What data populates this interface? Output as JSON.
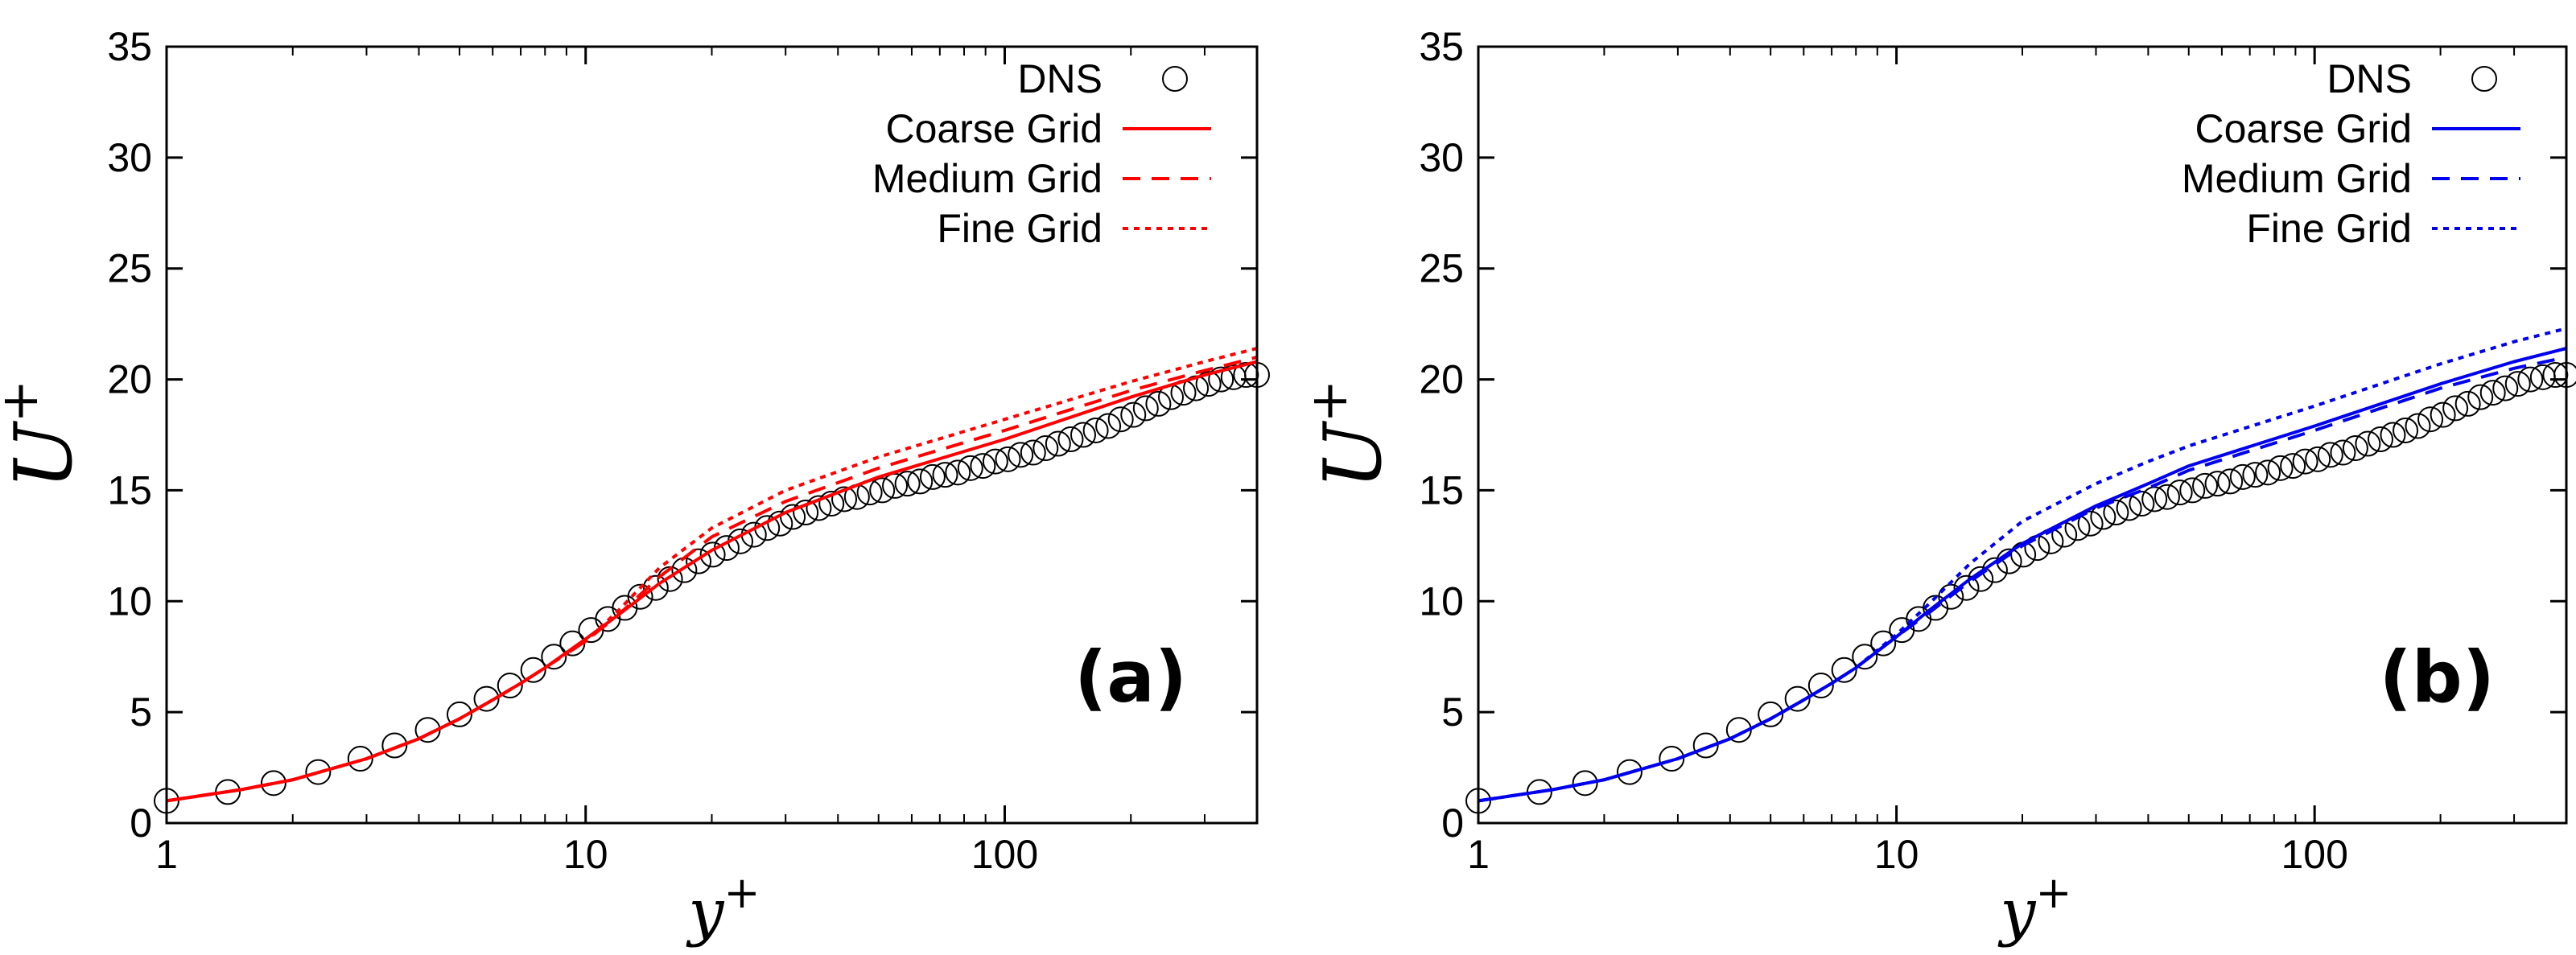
{
  "chart_data": [
    {
      "type": "line",
      "panel_label": "(a)",
      "xlabel": "y",
      "xlabel_sup": "+",
      "ylabel": "U",
      "ylabel_sup": "+",
      "x_scale": "log",
      "xlim": [
        1,
        400
      ],
      "ylim": [
        0,
        35
      ],
      "x_ticks": [
        1,
        10,
        100
      ],
      "x_tick_labels": [
        "1",
        "10",
        "100"
      ],
      "y_ticks": [
        0,
        5,
        10,
        15,
        20,
        25,
        30,
        35
      ],
      "y_tick_labels": [
        "0",
        "5",
        "10",
        "15",
        "20",
        "25",
        "30",
        "35"
      ],
      "grid": false,
      "legend_position": "top-right",
      "series": [
        {
          "name": "DNS",
          "style": "markers",
          "marker": "circle",
          "color": "#000000",
          "x": [
            1.0,
            1.4,
            1.8,
            2.3,
            2.9,
            3.5,
            4.2,
            5.0,
            5.8,
            6.6,
            7.5,
            8.4,
            9.3,
            10.3,
            11.3,
            12.4,
            13.5,
            14.7,
            15.9,
            17.2,
            18.6,
            20.1,
            21.7,
            23.4,
            25.2,
            27.1,
            29.1,
            31.2,
            33.5,
            36.0,
            38.6,
            41.4,
            44.4,
            47.6,
            51.0,
            54.7,
            58.6,
            62.8,
            67.3,
            72.1,
            77.3,
            82.8,
            88.7,
            95.0,
            101.8,
            109.1,
            116.9,
            125.2,
            134.1,
            143.7,
            153.9,
            164.9,
            176.6,
            189.2,
            202.7,
            217.1,
            232.6,
            249.2,
            266.9,
            285.9,
            306.3,
            328.1,
            351.5,
            376.5,
            400.0
          ],
          "y": [
            1.0,
            1.4,
            1.8,
            2.3,
            2.9,
            3.5,
            4.2,
            4.9,
            5.6,
            6.2,
            6.9,
            7.5,
            8.1,
            8.7,
            9.2,
            9.7,
            10.2,
            10.6,
            11.0,
            11.4,
            11.8,
            12.1,
            12.4,
            12.7,
            13.0,
            13.3,
            13.5,
            13.8,
            14.0,
            14.2,
            14.4,
            14.6,
            14.7,
            14.9,
            15.0,
            15.2,
            15.3,
            15.4,
            15.6,
            15.7,
            15.8,
            16.0,
            16.1,
            16.3,
            16.4,
            16.6,
            16.7,
            16.9,
            17.1,
            17.3,
            17.5,
            17.7,
            17.9,
            18.2,
            18.4,
            18.7,
            18.9,
            19.2,
            19.4,
            19.6,
            19.8,
            20.0,
            20.1,
            20.2,
            20.2
          ]
        },
        {
          "name": "Coarse Grid",
          "style": "solid",
          "color": "#ff0000",
          "x": [
            1,
            1.5,
            2,
            3,
            4,
            5,
            6,
            7,
            8,
            10,
            12,
            15,
            20,
            30,
            50,
            100,
            200,
            300,
            400
          ],
          "y": [
            1.0,
            1.5,
            1.95,
            2.9,
            3.8,
            4.7,
            5.55,
            6.3,
            7.0,
            8.3,
            9.4,
            10.8,
            12.3,
            14.0,
            15.6,
            17.3,
            19.2,
            20.2,
            20.8
          ]
        },
        {
          "name": "Medium Grid",
          "style": "dashed",
          "color": "#ff0000",
          "x": [
            1,
            1.5,
            2,
            3,
            4,
            5,
            6,
            7,
            8,
            10,
            12,
            15,
            20,
            30,
            50,
            100,
            200,
            300,
            400
          ],
          "y": [
            1.0,
            1.5,
            1.95,
            2.9,
            3.8,
            4.7,
            5.55,
            6.3,
            7.0,
            8.2,
            9.4,
            11.1,
            12.9,
            14.5,
            16.0,
            17.7,
            19.5,
            20.4,
            21.0
          ]
        },
        {
          "name": "Fine Grid",
          "style": "dotted",
          "color": "#ff0000",
          "x": [
            1,
            1.5,
            2,
            3,
            4,
            5,
            6,
            7,
            8,
            10,
            12,
            15,
            20,
            30,
            50,
            100,
            200,
            300,
            400
          ],
          "y": [
            1.0,
            1.5,
            1.95,
            2.9,
            3.8,
            4.7,
            5.55,
            6.3,
            7.0,
            8.2,
            9.6,
            11.5,
            13.3,
            15.0,
            16.5,
            18.2,
            19.9,
            20.8,
            21.4
          ]
        }
      ]
    },
    {
      "type": "line",
      "panel_label": "(b)",
      "xlabel": "y",
      "xlabel_sup": "+",
      "ylabel": "U",
      "ylabel_sup": "+",
      "x_scale": "log",
      "xlim": [
        1,
        400
      ],
      "ylim": [
        0,
        35
      ],
      "x_ticks": [
        1,
        10,
        100
      ],
      "x_tick_labels": [
        "1",
        "10",
        "100"
      ],
      "y_ticks": [
        0,
        5,
        10,
        15,
        20,
        25,
        30,
        35
      ],
      "y_tick_labels": [
        "0",
        "5",
        "10",
        "15",
        "20",
        "25",
        "30",
        "35"
      ],
      "grid": false,
      "legend_position": "top-right",
      "series": [
        {
          "name": "DNS",
          "style": "markers",
          "marker": "circle",
          "color": "#000000",
          "x": [
            1.0,
            1.4,
            1.8,
            2.3,
            2.9,
            3.5,
            4.2,
            5.0,
            5.8,
            6.6,
            7.5,
            8.4,
            9.3,
            10.3,
            11.3,
            12.4,
            13.5,
            14.7,
            15.9,
            17.2,
            18.6,
            20.1,
            21.7,
            23.4,
            25.2,
            27.1,
            29.1,
            31.2,
            33.5,
            36.0,
            38.6,
            41.4,
            44.4,
            47.6,
            51.0,
            54.7,
            58.6,
            62.8,
            67.3,
            72.1,
            77.3,
            82.8,
            88.7,
            95.0,
            101.8,
            109.1,
            116.9,
            125.2,
            134.1,
            143.7,
            153.9,
            164.9,
            176.6,
            189.2,
            202.7,
            217.1,
            232.6,
            249.2,
            266.9,
            285.9,
            306.3,
            328.1,
            351.5,
            376.5,
            400.0
          ],
          "y": [
            1.0,
            1.4,
            1.8,
            2.3,
            2.9,
            3.5,
            4.2,
            4.9,
            5.6,
            6.2,
            6.9,
            7.5,
            8.1,
            8.7,
            9.2,
            9.7,
            10.2,
            10.6,
            11.0,
            11.4,
            11.8,
            12.1,
            12.4,
            12.7,
            13.0,
            13.3,
            13.5,
            13.8,
            14.0,
            14.2,
            14.4,
            14.6,
            14.7,
            14.9,
            15.0,
            15.2,
            15.3,
            15.4,
            15.6,
            15.7,
            15.8,
            16.0,
            16.1,
            16.3,
            16.4,
            16.6,
            16.7,
            16.9,
            17.1,
            17.3,
            17.5,
            17.7,
            17.9,
            18.2,
            18.4,
            18.7,
            18.9,
            19.2,
            19.4,
            19.6,
            19.8,
            20.0,
            20.1,
            20.2,
            20.2
          ]
        },
        {
          "name": "Coarse Grid",
          "style": "solid",
          "color": "#0000ee",
          "x": [
            1,
            1.5,
            2,
            3,
            4,
            5,
            6,
            7,
            8,
            10,
            12,
            15,
            20,
            30,
            40,
            50,
            100,
            200,
            300,
            400
          ],
          "y": [
            1.0,
            1.5,
            1.95,
            2.9,
            3.8,
            4.7,
            5.55,
            6.3,
            7.0,
            8.4,
            9.6,
            11.0,
            12.6,
            14.3,
            15.3,
            16.1,
            17.9,
            19.8,
            20.8,
            21.4
          ]
        },
        {
          "name": "Medium Grid",
          "style": "dashed",
          "color": "#0000ee",
          "x": [
            1,
            1.5,
            2,
            3,
            4,
            5,
            6,
            7,
            8,
            10,
            12,
            15,
            20,
            30,
            40,
            50,
            100,
            200,
            300,
            400
          ],
          "y": [
            1.0,
            1.5,
            1.95,
            2.9,
            3.8,
            4.7,
            5.55,
            6.3,
            7.0,
            8.4,
            9.5,
            10.9,
            12.5,
            14.2,
            15.1,
            15.9,
            17.7,
            19.6,
            20.5,
            21.0
          ]
        },
        {
          "name": "Fine Grid",
          "style": "dotted",
          "color": "#0000ee",
          "x": [
            1,
            1.5,
            2,
            3,
            4,
            5,
            6,
            7,
            8,
            10,
            12,
            15,
            20,
            30,
            40,
            50,
            100,
            200,
            300,
            400
          ],
          "y": [
            1.0,
            1.5,
            1.95,
            2.9,
            3.8,
            4.7,
            5.55,
            6.3,
            7.0,
            8.5,
            9.9,
            11.7,
            13.6,
            15.3,
            16.3,
            17.0,
            18.8,
            20.7,
            21.7,
            22.3
          ]
        }
      ]
    }
  ]
}
